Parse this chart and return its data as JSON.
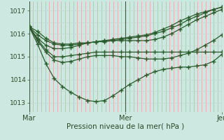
{
  "title": "",
  "xlabel": "Pression niveau de la mer( hPa )",
  "ylim": [
    1012.6,
    1017.4
  ],
  "xlim": [
    0,
    48
  ],
  "yticks": [
    1013,
    1014,
    1015,
    1016,
    1017
  ],
  "xtick_positions": [
    0,
    24,
    48
  ],
  "xtick_labels": [
    "Mar",
    "Mer",
    "Jeu"
  ],
  "vlines": [
    0,
    24,
    48
  ],
  "bg_color": "#cde8e0",
  "grid_color_v": "#e8a0a0",
  "grid_color_h": "#c8d8d0",
  "line_color": "#2d5a2d",
  "line_width": 0.9,
  "marker": "+",
  "marker_size": 4.0,
  "series": [
    [
      1016.3,
      1016.1,
      1015.8,
      1015.6,
      1015.55,
      1015.55,
      1015.6,
      1015.6,
      1015.65,
      1015.65,
      1015.7,
      1015.75,
      1015.8,
      1015.85,
      1015.9,
      1016.0,
      1016.1,
      1016.25,
      1016.4,
      1016.6,
      1016.75,
      1016.9,
      1017.05,
      1017.15
    ],
    [
      1016.3,
      1015.95,
      1015.7,
      1015.55,
      1015.5,
      1015.5,
      1015.55,
      1015.6,
      1015.65,
      1015.7,
      1015.75,
      1015.8,
      1015.85,
      1015.9,
      1015.95,
      1016.05,
      1016.2,
      1016.35,
      1016.55,
      1016.7,
      1016.85,
      1016.95,
      1017.05,
      1017.15
    ],
    [
      1016.3,
      1015.75,
      1015.3,
      1015.0,
      1015.0,
      1015.05,
      1015.1,
      1015.15,
      1015.2,
      1015.2,
      1015.2,
      1015.2,
      1015.2,
      1015.2,
      1015.2,
      1015.2,
      1015.2,
      1015.2,
      1015.2,
      1015.2,
      1015.2,
      1015.2,
      1015.2,
      1015.2
    ],
    [
      1016.3,
      1015.55,
      1014.7,
      1014.05,
      1013.7,
      1013.45,
      1013.25,
      1013.1,
      1013.05,
      1013.1,
      1013.3,
      1013.55,
      1013.8,
      1014.0,
      1014.2,
      1014.35,
      1014.45,
      1014.5,
      1014.55,
      1014.55,
      1014.6,
      1014.65,
      1014.8,
      1015.1
    ],
    [
      1016.3,
      1015.7,
      1015.2,
      1014.85,
      1014.75,
      1014.8,
      1014.9,
      1015.0,
      1015.05,
      1015.05,
      1015.05,
      1015.0,
      1015.0,
      1014.95,
      1014.9,
      1014.9,
      1014.9,
      1014.95,
      1015.05,
      1015.15,
      1015.3,
      1015.5,
      1015.7,
      1015.95
    ],
    [
      1016.3,
      1015.8,
      1015.5,
      1015.35,
      1015.35,
      1015.4,
      1015.5,
      1015.6,
      1015.65,
      1015.7,
      1015.7,
      1015.7,
      1015.7,
      1015.7,
      1015.7,
      1015.75,
      1015.85,
      1016.0,
      1016.2,
      1016.4,
      1016.6,
      1016.75,
      1016.9,
      1017.05
    ]
  ]
}
